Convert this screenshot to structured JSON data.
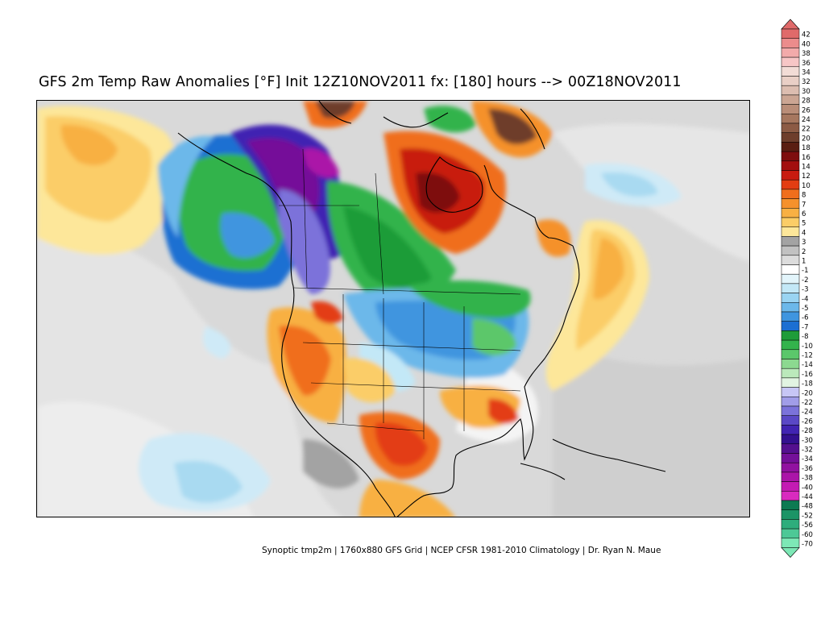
{
  "title": "GFS 2m Temp Raw Anomalies [°F] Init 12Z10NOV2011 fx: [180] hours --> 00Z18NOV2011",
  "footer": "Synoptic tmp2m | 1760x880 GFS Grid | NCEP CFSR 1981-2010 Climatology | Dr. Ryan N. Maue",
  "map": {
    "region": "North America",
    "base_color": "#d9d9d9",
    "coastline_color": "#000000"
  },
  "colorbar": {
    "levels": [
      {
        "label": "42",
        "color": "#e06a6a"
      },
      {
        "label": "40",
        "color": "#eb8c8c"
      },
      {
        "label": "38",
        "color": "#f2aaaa"
      },
      {
        "label": "36",
        "color": "#f7c6c6"
      },
      {
        "label": "34",
        "color": "#f2dcd6"
      },
      {
        "label": "32",
        "color": "#e9cfc6"
      },
      {
        "label": "30",
        "color": "#dcbdb0"
      },
      {
        "label": "28",
        "color": "#cba593"
      },
      {
        "label": "26",
        "color": "#b98d78"
      },
      {
        "label": "24",
        "color": "#a6775f"
      },
      {
        "label": "22",
        "color": "#8c5b45"
      },
      {
        "label": "20",
        "color": "#6e3e2c"
      },
      {
        "label": "18",
        "color": "#5a1e12"
      },
      {
        "label": "16",
        "color": "#7e0e0e"
      },
      {
        "label": "14",
        "color": "#a30f0f"
      },
      {
        "label": "12",
        "color": "#c81b10"
      },
      {
        "label": "10",
        "color": "#e33d12"
      },
      {
        "label": "8",
        "color": "#f06e1c"
      },
      {
        "label": "7",
        "color": "#f5912c"
      },
      {
        "label": "6",
        "color": "#f8b043"
      },
      {
        "label": "5",
        "color": "#fbcd67"
      },
      {
        "label": "4",
        "color": "#fde79a"
      },
      {
        "label": "3",
        "color": "#a3a3a3"
      },
      {
        "label": "2",
        "color": "#c1c1c1"
      },
      {
        "label": "1",
        "color": "#dcdcdc"
      },
      {
        "label": "-1",
        "color": "#ffffff"
      },
      {
        "label": "-2",
        "color": "#e3f5fb"
      },
      {
        "label": "-3",
        "color": "#c3e8f7"
      },
      {
        "label": "-4",
        "color": "#9ad4f2"
      },
      {
        "label": "-5",
        "color": "#6cb8ea"
      },
      {
        "label": "-6",
        "color": "#3f95df"
      },
      {
        "label": "-7",
        "color": "#1c6fd2"
      },
      {
        "label": "-8",
        "color": "#1e9c39"
      },
      {
        "label": "-10",
        "color": "#33b34c"
      },
      {
        "label": "-12",
        "color": "#5bc76b"
      },
      {
        "label": "-14",
        "color": "#8cd990"
      },
      {
        "label": "-16",
        "color": "#bbe9bb"
      },
      {
        "label": "-18",
        "color": "#e2f4e2"
      },
      {
        "label": "-20",
        "color": "#c7c6f5"
      },
      {
        "label": "-22",
        "color": "#a19de8"
      },
      {
        "label": "-24",
        "color": "#7b72da"
      },
      {
        "label": "-26",
        "color": "#5a48c6"
      },
      {
        "label": "-28",
        "color": "#4124b2"
      },
      {
        "label": "-30",
        "color": "#33108f"
      },
      {
        "label": "-32",
        "color": "#54108f"
      },
      {
        "label": "-34",
        "color": "#741099"
      },
      {
        "label": "-36",
        "color": "#9112a0"
      },
      {
        "label": "-38",
        "color": "#ab15a8"
      },
      {
        "label": "-40",
        "color": "#c41bb3"
      },
      {
        "label": "-44",
        "color": "#d92bbf"
      },
      {
        "label": "-48",
        "color": "#0d7a52"
      },
      {
        "label": "-52",
        "color": "#1b9466"
      },
      {
        "label": "-56",
        "color": "#2ead7c"
      },
      {
        "label": "-60",
        "color": "#4dc896"
      },
      {
        "label": "-70",
        "color": "#7de8b6"
      }
    ]
  }
}
